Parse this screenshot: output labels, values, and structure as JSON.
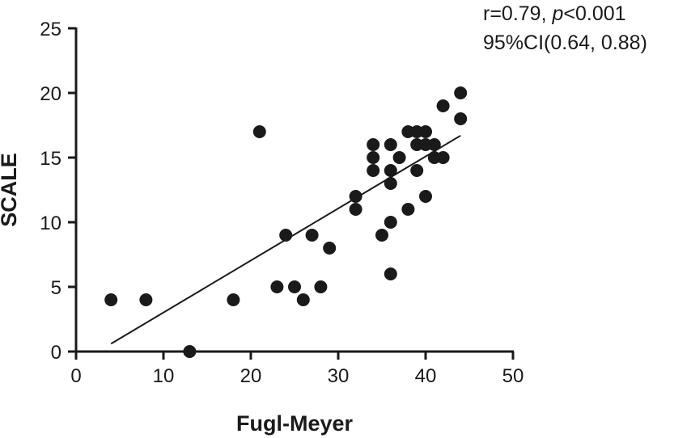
{
  "chart_data": {
    "type": "scatter",
    "xlabel": "Fugl-Meyer",
    "ylabel": "SCALE",
    "xlim": [
      0,
      50
    ],
    "ylim": [
      0,
      25
    ],
    "x_ticks": [
      0,
      10,
      20,
      30,
      40,
      50
    ],
    "y_ticks": [
      0,
      5,
      10,
      15,
      20,
      25
    ],
    "grid": false,
    "annotation": {
      "r_text": "r=0.79, ",
      "p_symbol": "p",
      "p_text": "<0.001",
      "ci_text": "95%CI(0.64, 0.88)"
    },
    "points": [
      {
        "x": 4,
        "y": 4
      },
      {
        "x": 8,
        "y": 4
      },
      {
        "x": 13,
        "y": 0
      },
      {
        "x": 18,
        "y": 4
      },
      {
        "x": 21,
        "y": 17
      },
      {
        "x": 23,
        "y": 5
      },
      {
        "x": 24,
        "y": 9
      },
      {
        "x": 25,
        "y": 5
      },
      {
        "x": 26,
        "y": 4
      },
      {
        "x": 27,
        "y": 9
      },
      {
        "x": 28,
        "y": 5
      },
      {
        "x": 29,
        "y": 8
      },
      {
        "x": 32,
        "y": 12
      },
      {
        "x": 32,
        "y": 11
      },
      {
        "x": 34,
        "y": 16
      },
      {
        "x": 34,
        "y": 15
      },
      {
        "x": 34,
        "y": 14
      },
      {
        "x": 35,
        "y": 9
      },
      {
        "x": 36,
        "y": 16
      },
      {
        "x": 36,
        "y": 14
      },
      {
        "x": 36,
        "y": 13
      },
      {
        "x": 36,
        "y": 10
      },
      {
        "x": 36,
        "y": 6
      },
      {
        "x": 37,
        "y": 15
      },
      {
        "x": 38,
        "y": 17
      },
      {
        "x": 38,
        "y": 11
      },
      {
        "x": 39,
        "y": 17
      },
      {
        "x": 39,
        "y": 16
      },
      {
        "x": 39,
        "y": 14
      },
      {
        "x": 40,
        "y": 17
      },
      {
        "x": 40,
        "y": 16
      },
      {
        "x": 40,
        "y": 12
      },
      {
        "x": 41,
        "y": 16
      },
      {
        "x": 41,
        "y": 15
      },
      {
        "x": 42,
        "y": 19
      },
      {
        "x": 42,
        "y": 15
      },
      {
        "x": 44,
        "y": 20
      },
      {
        "x": 44,
        "y": 18
      }
    ],
    "fit_line": {
      "x": [
        4,
        44
      ],
      "y": [
        0.6,
        16.7
      ]
    }
  }
}
